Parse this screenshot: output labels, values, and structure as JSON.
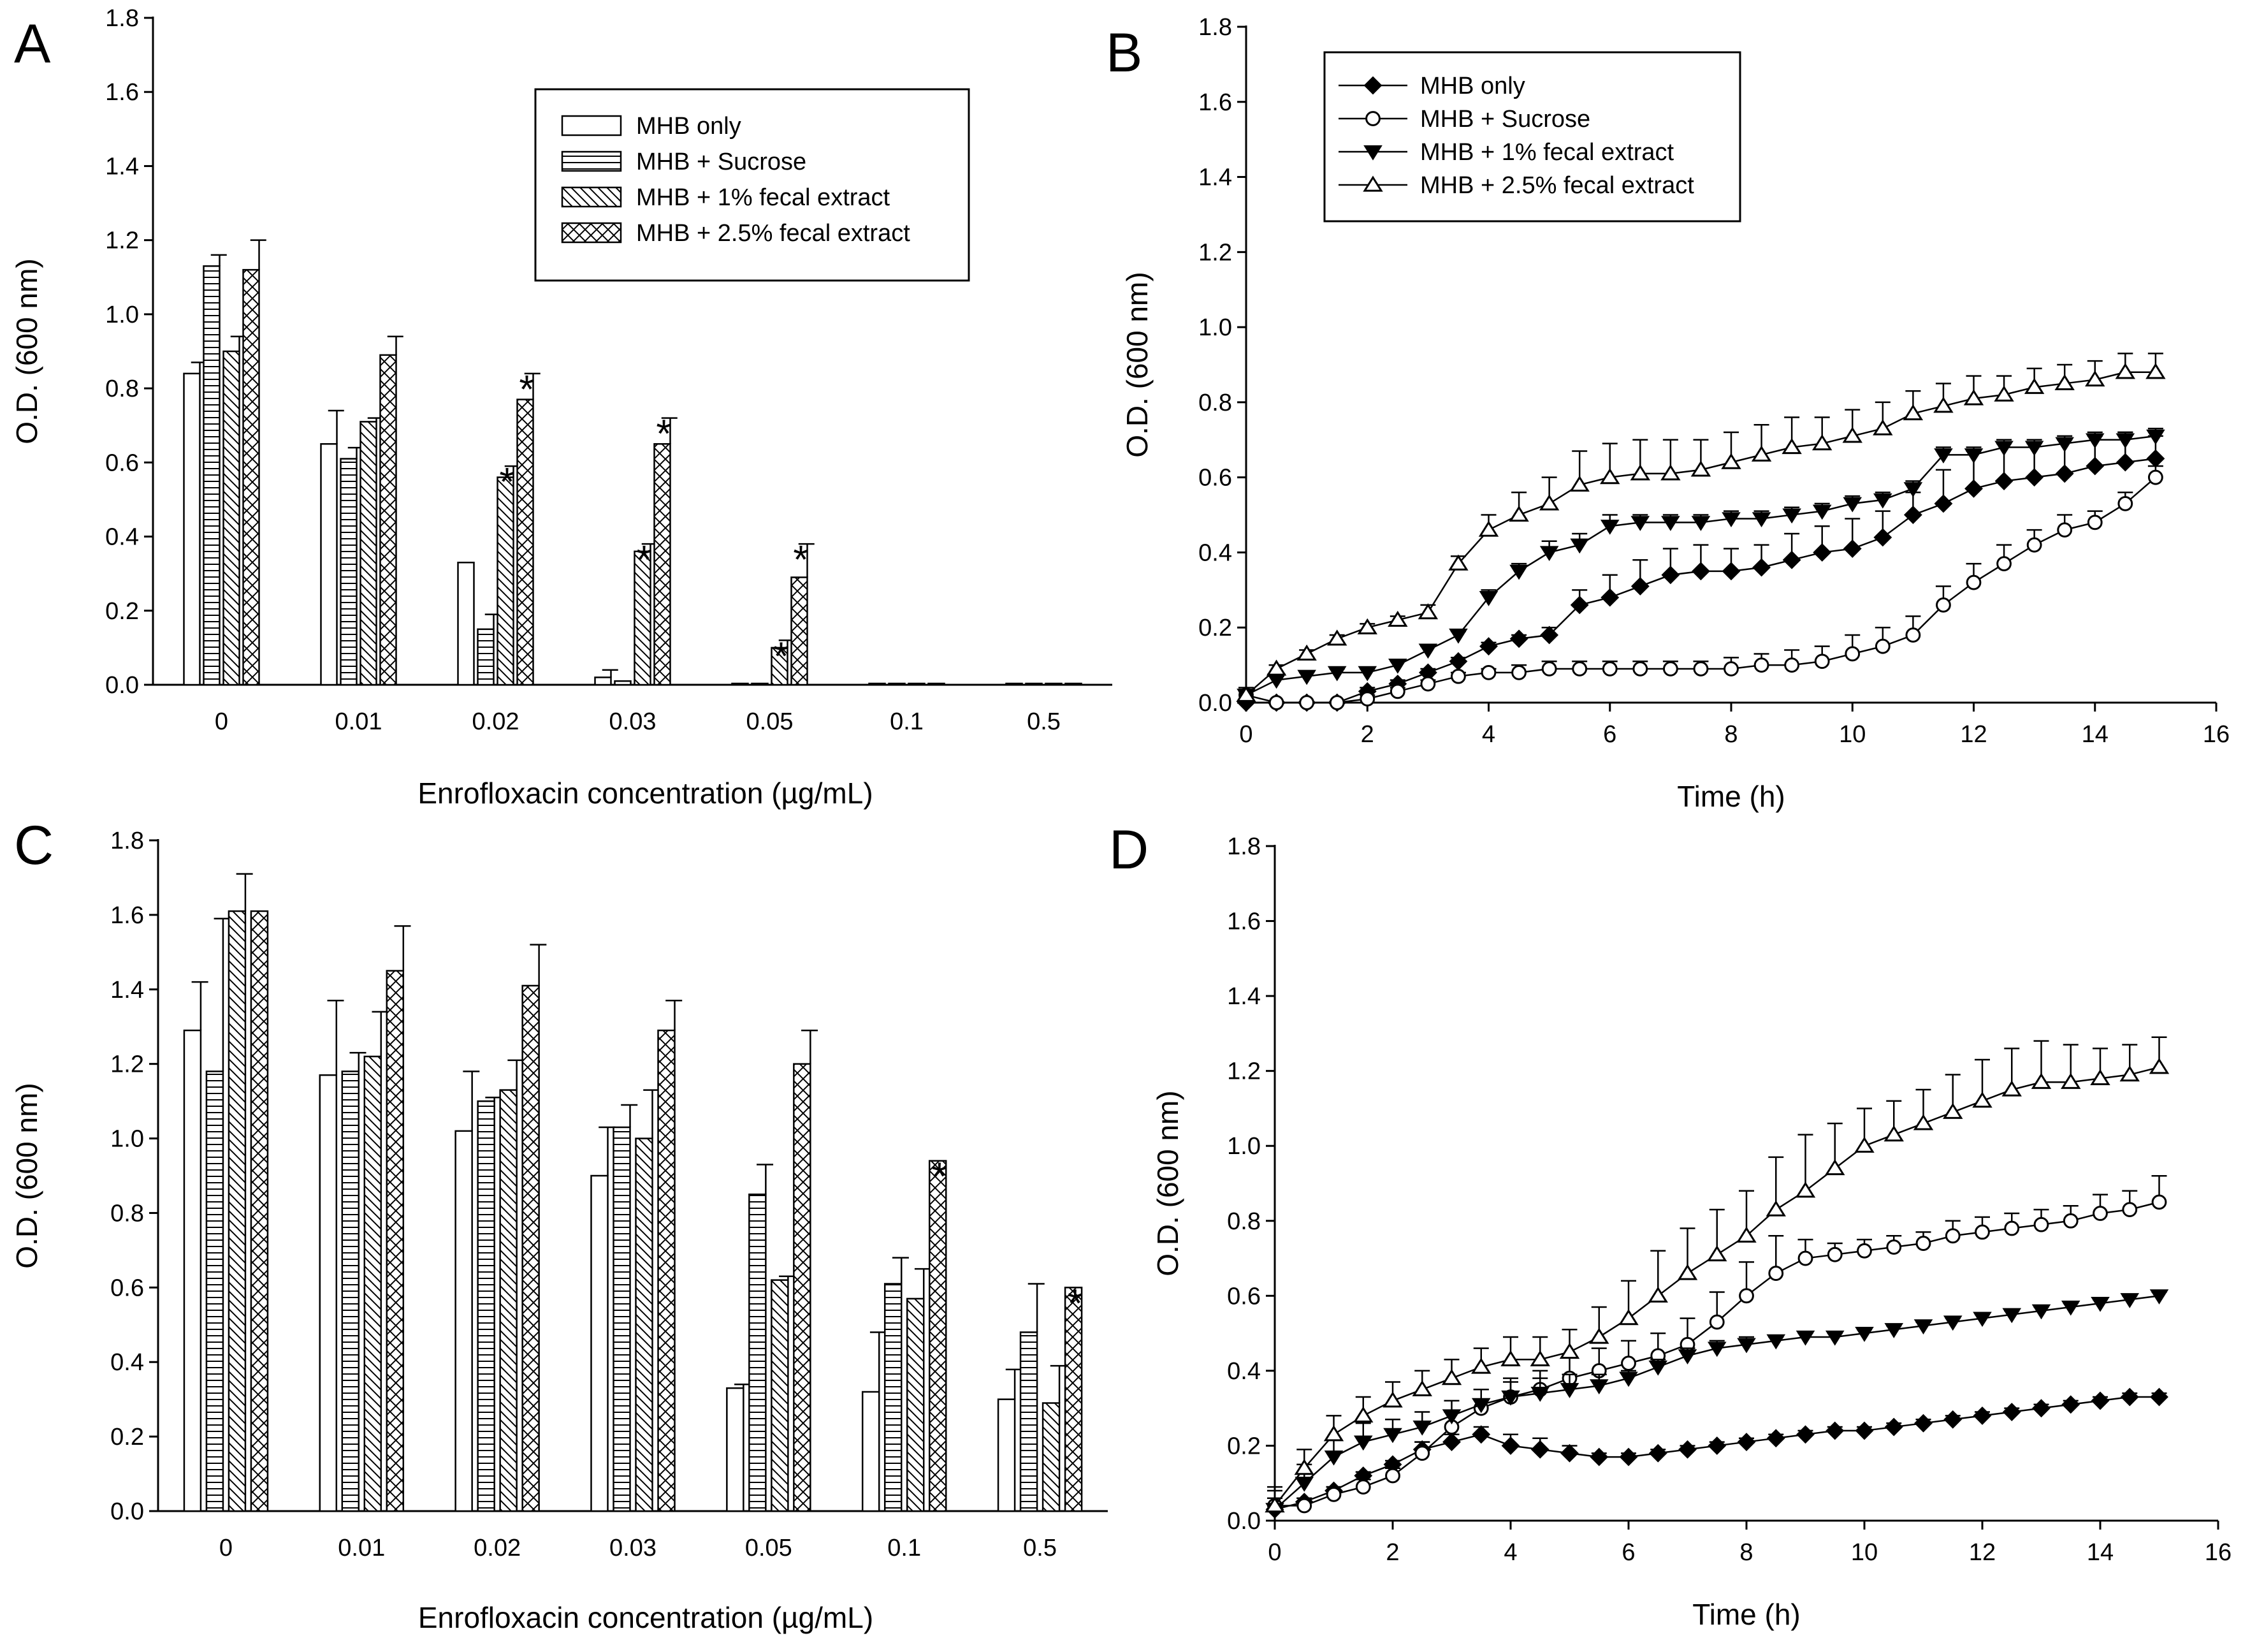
{
  "panels": {
    "A": {
      "letter": "A"
    },
    "B": {
      "letter": "B"
    },
    "C": {
      "letter": "C"
    },
    "D": {
      "letter": "D"
    }
  },
  "chart_data": [
    {
      "id": "A",
      "type": "bar",
      "title": "",
      "xlabel": "Enrofloxacin concentration (µg/mL)",
      "ylabel": "O.D. (600 nm)",
      "ylim": [
        0,
        1.8
      ],
      "yticks": [
        "0.0",
        "0.2",
        "0.4",
        "0.6",
        "0.8",
        "1.0",
        "1.2",
        "1.4",
        "1.6",
        "1.8"
      ],
      "categories": [
        "0",
        "0.01",
        "0.02",
        "0.03",
        "0.05",
        "0.1",
        "0.5"
      ],
      "legend_position": "top-right",
      "series": [
        {
          "name": "MHB only",
          "values": [
            0.84,
            0.65,
            0.33,
            0.02,
            0.0,
            0.0,
            0.0
          ],
          "errors": [
            0.03,
            0.09,
            0.0,
            0.02,
            0.0,
            0.0,
            0.0
          ]
        },
        {
          "name": "MHB + Sucrose",
          "values": [
            1.13,
            0.61,
            0.15,
            0.01,
            0.0,
            0.0,
            0.0
          ],
          "errors": [
            0.03,
            0.03,
            0.04,
            0.0,
            0.0,
            0.0,
            0.0
          ]
        },
        {
          "name": "MHB + 1% fecal extract",
          "values": [
            0.9,
            0.71,
            0.56,
            0.36,
            0.1,
            0.0,
            0.0
          ],
          "errors": [
            0.04,
            0.01,
            0.03,
            0.02,
            0.02,
            0.0,
            0.0
          ]
        },
        {
          "name": "MHB + 2.5% fecal extract",
          "values": [
            1.12,
            0.89,
            0.77,
            0.65,
            0.29,
            0.0,
            0.0
          ],
          "errors": [
            0.08,
            0.05,
            0.07,
            0.07,
            0.09,
            0.0,
            0.0
          ]
        }
      ],
      "annotations": [
        {
          "text": "*",
          "category": "0.02",
          "series": 2
        },
        {
          "text": "*",
          "category": "0.02",
          "series": 3
        },
        {
          "text": "*",
          "category": "0.03",
          "series": 2
        },
        {
          "text": "*",
          "category": "0.03",
          "series": 3
        },
        {
          "text": "*",
          "category": "0.05",
          "series": 2
        },
        {
          "text": "*",
          "category": "0.05",
          "series": 3
        }
      ]
    },
    {
      "id": "B",
      "type": "line",
      "title": "",
      "xlabel": "Time (h)",
      "ylabel": "O.D. (600 nm)",
      "xlim": [
        0,
        16
      ],
      "ylim": [
        0,
        1.8
      ],
      "xticks": [
        "0",
        "2",
        "4",
        "6",
        "8",
        "10",
        "12",
        "14",
        "16"
      ],
      "yticks": [
        "0.0",
        "0.2",
        "0.4",
        "0.6",
        "0.8",
        "1.0",
        "1.2",
        "1.4",
        "1.6",
        "1.8"
      ],
      "legend_position": "top-left",
      "x": [
        0,
        0.5,
        1,
        1.5,
        2,
        2.5,
        3,
        3.5,
        4,
        4.5,
        5,
        5.5,
        6,
        6.5,
        7,
        7.5,
        8,
        8.5,
        9,
        9.5,
        10,
        10.5,
        11,
        11.5,
        12,
        12.5,
        13,
        13.5,
        14,
        14.5,
        15
      ],
      "series": [
        {
          "name": "MHB only",
          "marker": "filled-diamond",
          "values": [
            0.0,
            0.0,
            0.0,
            0.0,
            0.03,
            0.05,
            0.08,
            0.11,
            0.15,
            0.17,
            0.18,
            0.26,
            0.28,
            0.31,
            0.34,
            0.35,
            0.35,
            0.36,
            0.38,
            0.4,
            0.41,
            0.44,
            0.5,
            0.53,
            0.57,
            0.59,
            0.6,
            0.61,
            0.63,
            0.64,
            0.65
          ],
          "errors": [
            0.0,
            0.0,
            0.0,
            0.0,
            0.01,
            0.01,
            0.01,
            0.01,
            0.01,
            0.01,
            0.02,
            0.04,
            0.06,
            0.07,
            0.07,
            0.07,
            0.06,
            0.06,
            0.07,
            0.07,
            0.08,
            0.07,
            0.06,
            0.09,
            0.1,
            0.1,
            0.09,
            0.09,
            0.08,
            0.08,
            0.06
          ]
        },
        {
          "name": "MHB + Sucrose",
          "marker": "open-circle",
          "values": [
            0.02,
            0.0,
            0.0,
            0.0,
            0.01,
            0.03,
            0.05,
            0.07,
            0.08,
            0.08,
            0.09,
            0.09,
            0.09,
            0.09,
            0.09,
            0.09,
            0.09,
            0.1,
            0.1,
            0.11,
            0.13,
            0.15,
            0.18,
            0.26,
            0.32,
            0.37,
            0.42,
            0.46,
            0.48,
            0.53,
            0.6
          ],
          "errors": [
            0.02,
            0.0,
            0.0,
            0.0,
            0.01,
            0.01,
            0.01,
            0.01,
            0.01,
            0.02,
            0.02,
            0.02,
            0.02,
            0.02,
            0.02,
            0.02,
            0.03,
            0.03,
            0.04,
            0.04,
            0.05,
            0.05,
            0.05,
            0.05,
            0.05,
            0.05,
            0.04,
            0.04,
            0.03,
            0.03,
            0.03
          ]
        },
        {
          "name": "MHB + 1% fecal extract",
          "marker": "filled-triangle-down",
          "values": [
            0.02,
            0.06,
            0.07,
            0.08,
            0.08,
            0.1,
            0.14,
            0.18,
            0.28,
            0.35,
            0.4,
            0.42,
            0.47,
            0.48,
            0.48,
            0.48,
            0.49,
            0.49,
            0.5,
            0.51,
            0.53,
            0.54,
            0.57,
            0.66,
            0.66,
            0.68,
            0.68,
            0.69,
            0.7,
            0.7,
            0.71
          ],
          "errors": [
            0.01,
            0.01,
            0.01,
            0.01,
            0.01,
            0.01,
            0.01,
            0.01,
            0.02,
            0.02,
            0.03,
            0.03,
            0.03,
            0.02,
            0.02,
            0.02,
            0.02,
            0.02,
            0.02,
            0.02,
            0.02,
            0.02,
            0.02,
            0.02,
            0.02,
            0.02,
            0.02,
            0.02,
            0.02,
            0.02,
            0.02
          ]
        },
        {
          "name": "MHB + 2.5% fecal extract",
          "marker": "open-triangle-up",
          "values": [
            0.02,
            0.09,
            0.13,
            0.17,
            0.2,
            0.22,
            0.24,
            0.37,
            0.46,
            0.5,
            0.53,
            0.58,
            0.6,
            0.61,
            0.61,
            0.62,
            0.64,
            0.66,
            0.68,
            0.69,
            0.71,
            0.73,
            0.77,
            0.79,
            0.81,
            0.82,
            0.84,
            0.85,
            0.86,
            0.88,
            0.88
          ],
          "errors": [
            0.01,
            0.01,
            0.01,
            0.01,
            0.01,
            0.01,
            0.02,
            0.02,
            0.04,
            0.06,
            0.07,
            0.09,
            0.09,
            0.09,
            0.09,
            0.08,
            0.08,
            0.08,
            0.08,
            0.07,
            0.07,
            0.07,
            0.06,
            0.06,
            0.06,
            0.05,
            0.05,
            0.05,
            0.05,
            0.05,
            0.05
          ]
        }
      ]
    },
    {
      "id": "C",
      "type": "bar",
      "title": "",
      "xlabel": "Enrofloxacin concentration (µg/mL)",
      "ylabel": "O.D. (600 nm)",
      "ylim": [
        0,
        1.8
      ],
      "yticks": [
        "0.0",
        "0.2",
        "0.4",
        "0.6",
        "0.8",
        "1.0",
        "1.2",
        "1.4",
        "1.6",
        "1.8"
      ],
      "categories": [
        "0",
        "0.01",
        "0.02",
        "0.03",
        "0.05",
        "0.1",
        "0.5"
      ],
      "series": [
        {
          "name": "MHB only",
          "values": [
            1.29,
            1.17,
            1.02,
            0.9,
            0.33,
            0.32,
            0.3
          ],
          "errors": [
            0.13,
            0.2,
            0.16,
            0.13,
            0.01,
            0.16,
            0.08
          ]
        },
        {
          "name": "MHB + Sucrose",
          "values": [
            1.18,
            1.18,
            1.1,
            1.03,
            0.85,
            0.61,
            0.48
          ],
          "errors": [
            0.41,
            0.05,
            0.01,
            0.06,
            0.08,
            0.07,
            0.13
          ]
        },
        {
          "name": "MHB + 1% fecal extract",
          "values": [
            1.61,
            1.22,
            1.13,
            1.0,
            0.62,
            0.57,
            0.29
          ],
          "errors": [
            0.1,
            0.12,
            0.08,
            0.13,
            0.01,
            0.08,
            0.1
          ]
        },
        {
          "name": "MHB + 2.5% fecal extract",
          "values": [
            1.61,
            1.45,
            1.41,
            1.29,
            1.2,
            0.94,
            0.6
          ],
          "errors": [
            0.0,
            0.12,
            0.11,
            0.08,
            0.09,
            0.0,
            0.0
          ]
        }
      ],
      "annotations": [
        {
          "text": "*",
          "category": "0.1",
          "series": 3
        },
        {
          "text": "*",
          "category": "0.5",
          "series": 3
        }
      ]
    },
    {
      "id": "D",
      "type": "line",
      "title": "",
      "xlabel": "Time (h)",
      "ylabel": "O.D. (600 nm)",
      "xlim": [
        0,
        16
      ],
      "ylim": [
        0,
        1.8
      ],
      "xticks": [
        "0",
        "2",
        "4",
        "6",
        "8",
        "10",
        "12",
        "14",
        "16"
      ],
      "yticks": [
        "0.0",
        "0.2",
        "0.4",
        "0.6",
        "0.8",
        "1.0",
        "1.2",
        "1.4",
        "1.6",
        "1.8"
      ],
      "x": [
        0,
        0.5,
        1,
        1.5,
        2,
        2.5,
        3,
        3.5,
        4,
        4.5,
        5,
        5.5,
        6,
        6.5,
        7,
        7.5,
        8,
        8.5,
        9,
        9.5,
        10,
        10.5,
        11,
        11.5,
        12,
        12.5,
        13,
        13.5,
        14,
        14.5,
        15
      ],
      "series": [
        {
          "name": "MHB only",
          "marker": "filled-diamond",
          "values": [
            0.03,
            0.05,
            0.08,
            0.12,
            0.15,
            0.19,
            0.21,
            0.23,
            0.2,
            0.19,
            0.18,
            0.17,
            0.17,
            0.18,
            0.19,
            0.2,
            0.21,
            0.22,
            0.23,
            0.24,
            0.24,
            0.25,
            0.26,
            0.27,
            0.28,
            0.29,
            0.3,
            0.31,
            0.32,
            0.33,
            0.33
          ],
          "errors": [
            0.01,
            0.01,
            0.01,
            0.01,
            0.01,
            0.02,
            0.02,
            0.02,
            0.03,
            0.03,
            0.02,
            0.01,
            0.01,
            0.01,
            0.01,
            0.01,
            0.01,
            0.01,
            0.01,
            0.01,
            0.01,
            0.01,
            0.01,
            0.01,
            0.01,
            0.01,
            0.01,
            0.01,
            0.01,
            0.01,
            0.01
          ]
        },
        {
          "name": "MHB + Sucrose",
          "marker": "open-circle",
          "values": [
            0.04,
            0.04,
            0.07,
            0.09,
            0.12,
            0.18,
            0.25,
            0.3,
            0.33,
            0.35,
            0.38,
            0.4,
            0.42,
            0.44,
            0.47,
            0.53,
            0.6,
            0.66,
            0.7,
            0.71,
            0.72,
            0.73,
            0.74,
            0.76,
            0.77,
            0.78,
            0.79,
            0.8,
            0.82,
            0.83,
            0.85
          ],
          "errors": [
            0.02,
            0.02,
            0.02,
            0.02,
            0.02,
            0.03,
            0.04,
            0.05,
            0.05,
            0.05,
            0.06,
            0.06,
            0.06,
            0.06,
            0.07,
            0.08,
            0.09,
            0.1,
            0.05,
            0.03,
            0.03,
            0.03,
            0.03,
            0.04,
            0.04,
            0.04,
            0.04,
            0.04,
            0.05,
            0.05,
            0.07
          ]
        },
        {
          "name": "MHB + 1% fecal extract",
          "marker": "filled-triangle-down",
          "values": [
            0.03,
            0.1,
            0.17,
            0.21,
            0.23,
            0.25,
            0.28,
            0.31,
            0.33,
            0.34,
            0.35,
            0.36,
            0.38,
            0.41,
            0.44,
            0.46,
            0.47,
            0.48,
            0.49,
            0.49,
            0.5,
            0.51,
            0.52,
            0.53,
            0.54,
            0.55,
            0.56,
            0.57,
            0.58,
            0.59,
            0.6
          ],
          "errors": [
            0.05,
            0.05,
            0.05,
            0.05,
            0.04,
            0.04,
            0.04,
            0.04,
            0.04,
            0.04,
            0.04,
            0.03,
            0.02,
            0.02,
            0.02,
            0.02,
            0.02,
            0.01,
            0.01,
            0.01,
            0.01,
            0.01,
            0.01,
            0.01,
            0.01,
            0.01,
            0.01,
            0.01,
            0.01,
            0.01,
            0.01
          ]
        },
        {
          "name": "MHB + 2.5% fecal extract",
          "marker": "open-triangle-up",
          "values": [
            0.04,
            0.14,
            0.23,
            0.28,
            0.32,
            0.35,
            0.38,
            0.41,
            0.43,
            0.43,
            0.45,
            0.49,
            0.54,
            0.6,
            0.66,
            0.71,
            0.76,
            0.83,
            0.88,
            0.94,
            1.0,
            1.03,
            1.06,
            1.09,
            1.12,
            1.15,
            1.17,
            1.17,
            1.18,
            1.19,
            1.21
          ],
          "errors": [
            0.05,
            0.05,
            0.05,
            0.05,
            0.05,
            0.05,
            0.05,
            0.05,
            0.06,
            0.06,
            0.06,
            0.08,
            0.1,
            0.12,
            0.12,
            0.12,
            0.12,
            0.14,
            0.15,
            0.12,
            0.1,
            0.09,
            0.09,
            0.1,
            0.11,
            0.11,
            0.11,
            0.1,
            0.08,
            0.08,
            0.08
          ]
        }
      ]
    }
  ]
}
